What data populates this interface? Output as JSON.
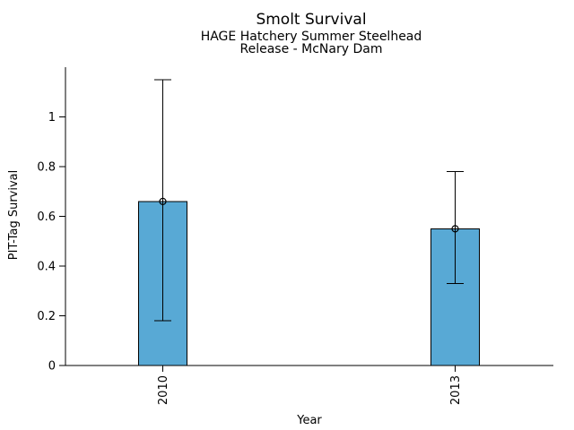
{
  "chart_data": {
    "type": "bar",
    "title": "Smolt Survival",
    "subtitle": [
      "HAGE Hatchery Summer Steelhead",
      "Release - McNary Dam"
    ],
    "xlabel": "Year",
    "ylabel": "PIT-Tag Survival",
    "categories": [
      "2010",
      "2013"
    ],
    "values": [
      0.66,
      0.55
    ],
    "error_bars": {
      "lower": [
        0.18,
        0.33
      ],
      "upper": [
        1.15,
        0.78
      ]
    },
    "yticks": [
      0,
      0.2,
      0.4,
      0.6,
      0.8,
      1
    ],
    "ytick_labels": [
      "0",
      "0.2",
      "0.4",
      "0.6",
      "0.8",
      "1"
    ],
    "ylim": [
      0,
      1.2
    ],
    "grid": false,
    "legend": "none",
    "marker": "open-circle",
    "colors": {
      "bar_fill": "#58A9D5",
      "edge": "#000000",
      "background": "#FFFFFF",
      "text": "#000000"
    }
  }
}
